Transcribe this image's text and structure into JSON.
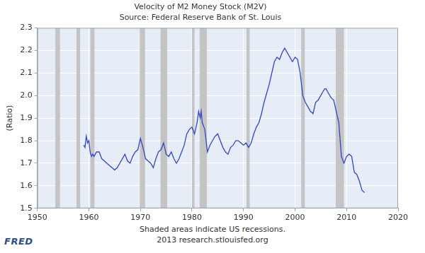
{
  "chart_data": {
    "type": "line",
    "title": "Velocity of M2 Money Stock (M2V)",
    "subtitle": "Source: Federal Reserve Bank of St. Louis",
    "y_label": "(Ratio)",
    "annotations": [
      "Shaded areas indicate US recessions.",
      "2013 research.stlouisfed.org"
    ],
    "logo": "FRED",
    "color": "#3344c4",
    "grid": true,
    "xlim": [
      1950,
      2020
    ],
    "xticks": [
      1950,
      1960,
      1970,
      1980,
      1990,
      2000,
      2010,
      2020
    ],
    "ylim": [
      1.5,
      2.3
    ],
    "yticks": [
      1.5,
      1.6,
      1.7,
      1.8,
      1.9,
      {
        "value": 2,
        "label": "2.0"
      },
      2.1,
      2.2,
      2.3
    ],
    "recessions": [
      [
        1953.5,
        1954.4
      ],
      [
        1957.6,
        1958.3
      ],
      [
        1960.3,
        1961.1
      ],
      [
        1969.9,
        1970.9
      ],
      [
        1973.9,
        1975.2
      ],
      [
        1980.0,
        1980.5
      ],
      [
        1981.5,
        1982.9
      ],
      [
        1990.6,
        1991.2
      ],
      [
        2001.2,
        2001.9
      ],
      [
        2007.9,
        2009.5
      ]
    ],
    "x": [
      1959.0,
      1959.25,
      1959.5,
      1959.75,
      1960.0,
      1960.25,
      1960.5,
      1960.75,
      1961.0,
      1961.5,
      1962.0,
      1962.5,
      1963.0,
      1963.5,
      1964.0,
      1964.5,
      1965.0,
      1965.5,
      1966.0,
      1966.5,
      1967.0,
      1967.5,
      1968.0,
      1968.5,
      1969.0,
      1969.5,
      1970.0,
      1970.5,
      1971.0,
      1971.5,
      1972.0,
      1972.5,
      1973.0,
      1973.5,
      1974.0,
      1974.5,
      1975.0,
      1975.5,
      1976.0,
      1976.5,
      1977.0,
      1977.5,
      1978.0,
      1978.5,
      1979.0,
      1979.5,
      1980.0,
      1980.5,
      1981.0,
      1981.3,
      1981.6,
      1981.8,
      1982.0,
      1982.5,
      1983.0,
      1983.5,
      1984.0,
      1984.5,
      1985.0,
      1985.5,
      1986.0,
      1986.5,
      1987.0,
      1987.5,
      1988.0,
      1988.5,
      1989.0,
      1989.5,
      1990.0,
      1990.5,
      1991.0,
      1991.5,
      1992.0,
      1992.5,
      1993.0,
      1993.5,
      1994.0,
      1994.5,
      1995.0,
      1995.5,
      1996.0,
      1996.5,
      1997.0,
      1997.5,
      1998.0,
      1998.5,
      1999.0,
      1999.5,
      2000.0,
      2000.5,
      2001.0,
      2001.5,
      2002.0,
      2002.5,
      2003.0,
      2003.5,
      2004.0,
      2004.5,
      2005.0,
      2005.5,
      2005.75,
      2006.0,
      2006.5,
      2007.0,
      2007.5,
      2008.0,
      2008.5,
      2009.0,
      2009.5,
      2010.0,
      2010.5,
      2011.0,
      2011.5,
      2012.0,
      2012.5,
      2013.0,
      2013.5
    ],
    "values": [
      1.78,
      1.77,
      1.82,
      1.79,
      1.8,
      1.75,
      1.73,
      1.74,
      1.73,
      1.75,
      1.75,
      1.72,
      1.71,
      1.7,
      1.69,
      1.68,
      1.67,
      1.68,
      1.7,
      1.72,
      1.74,
      1.71,
      1.7,
      1.73,
      1.75,
      1.76,
      1.81,
      1.77,
      1.72,
      1.71,
      1.7,
      1.68,
      1.72,
      1.75,
      1.76,
      1.79,
      1.74,
      1.73,
      1.75,
      1.72,
      1.7,
      1.72,
      1.75,
      1.78,
      1.83,
      1.85,
      1.86,
      1.83,
      1.88,
      1.93,
      1.9,
      1.93,
      1.88,
      1.85,
      1.75,
      1.78,
      1.8,
      1.82,
      1.83,
      1.8,
      1.77,
      1.75,
      1.74,
      1.77,
      1.78,
      1.8,
      1.8,
      1.79,
      1.78,
      1.79,
      1.77,
      1.79,
      1.83,
      1.86,
      1.88,
      1.92,
      1.97,
      2.01,
      2.05,
      2.1,
      2.15,
      2.17,
      2.16,
      2.19,
      2.21,
      2.19,
      2.17,
      2.15,
      2.17,
      2.16,
      2.1,
      2.0,
      1.97,
      1.95,
      1.93,
      1.92,
      1.97,
      1.98,
      2.0,
      2.02,
      2.03,
      2.03,
      2.01,
      1.99,
      1.98,
      1.93,
      1.88,
      1.73,
      1.7,
      1.73,
      1.74,
      1.73,
      1.66,
      1.65,
      1.62,
      1.58,
      1.57
    ]
  }
}
